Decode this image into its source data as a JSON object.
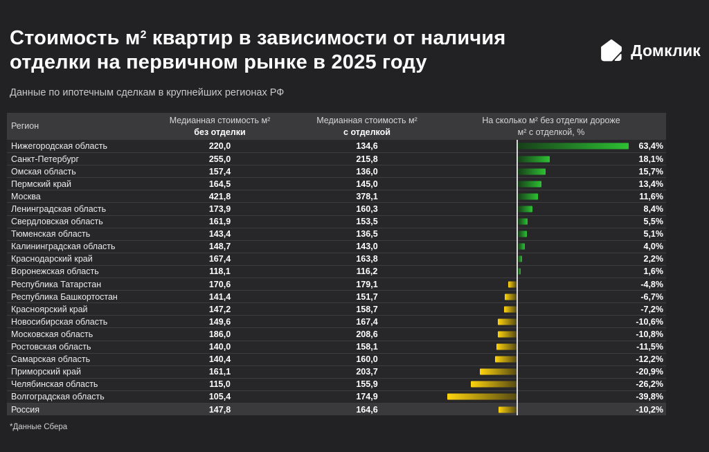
{
  "header": {
    "title_line1_pre": "Стоимость м",
    "title_sup": "2",
    "title_line1_rest": " квартир в зависимости от наличия",
    "title_line2": "отделки на первичном рынке в 2025 году",
    "subtitle": "Данные по ипотечным сделкам в крупнейших регионах РФ",
    "logo_text": "Домклик"
  },
  "table": {
    "columns": {
      "region": "Регион",
      "col2_line1": "Медианная стоимость м²",
      "col2_line2": "без отделки",
      "col3_line1": "Медианная стоимость м²",
      "col3_line2": "с отделкой",
      "col4_line1": "На сколько м² без отделки дороже",
      "col4_line2": "м² с отделкой, %"
    },
    "highlight_row": "Россия"
  },
  "footnote": "*Данные Сбера",
  "colors": {
    "background": "#222224",
    "row_bg": "#272729",
    "header_bg": "#3a3a3c",
    "separator": "#3e3e40",
    "baseline": "#d9d9d9",
    "positive_bright": "#2dc133",
    "positive_dark": "#173f19",
    "negative_bright": "#ffd40e",
    "negative_dark": "#564a12"
  },
  "chart_data": {
    "type": "bar",
    "orientation": "horizontal",
    "diverging": true,
    "title": "Стоимость м² квартир в зависимости от наличия отделки на первичном рынке в 2025 году",
    "subtitle": "Данные по ипотечным сделкам в крупнейших регионах РФ",
    "categories": [
      "Нижегородская область",
      "Санкт-Петербург",
      "Омская область",
      "Пермский край",
      "Москва",
      "Ленинградская область",
      "Свердловская область",
      "Тюменская область",
      "Калининградская область",
      "Краснодарский край",
      "Воронежская область",
      "Республика Татарстан",
      "Республика Башкортостан",
      "Красноярский край",
      "Новосибирская область",
      "Московская область",
      "Ростовская область",
      "Самарская область",
      "Приморский край",
      "Челябинская область",
      "Волгоградская область",
      "Россия"
    ],
    "series": [
      {
        "name": "Медианная стоимость м² без отделки",
        "values": [
          220.0,
          255.0,
          157.4,
          164.5,
          421.8,
          173.9,
          161.9,
          143.4,
          148.7,
          167.4,
          118.1,
          170.6,
          141.4,
          147.2,
          149.6,
          186.0,
          140.0,
          140.4,
          161.1,
          115.0,
          105.4,
          147.8
        ]
      },
      {
        "name": "Медианная стоимость м² с отделкой",
        "values": [
          134.6,
          215.8,
          136.0,
          145.0,
          378.1,
          160.3,
          153.5,
          136.5,
          143.0,
          163.8,
          116.2,
          179.1,
          151.7,
          158.7,
          167.4,
          208.6,
          158.1,
          160.0,
          203.7,
          155.9,
          174.9,
          164.6
        ]
      },
      {
        "name": "На сколько м² без отделки дороже м² с отделкой, %",
        "values": [
          63.4,
          18.1,
          15.7,
          13.4,
          11.6,
          8.4,
          5.5,
          5.1,
          4.0,
          2.2,
          1.6,
          -4.8,
          -6.7,
          -7.2,
          -10.6,
          -10.8,
          -11.5,
          -12.2,
          -20.9,
          -26.2,
          -39.8,
          -10.2
        ]
      }
    ],
    "value_format": "decimal-comma",
    "xlim_percent": [
      -45,
      65
    ],
    "legend_position": "none",
    "grid": false
  }
}
